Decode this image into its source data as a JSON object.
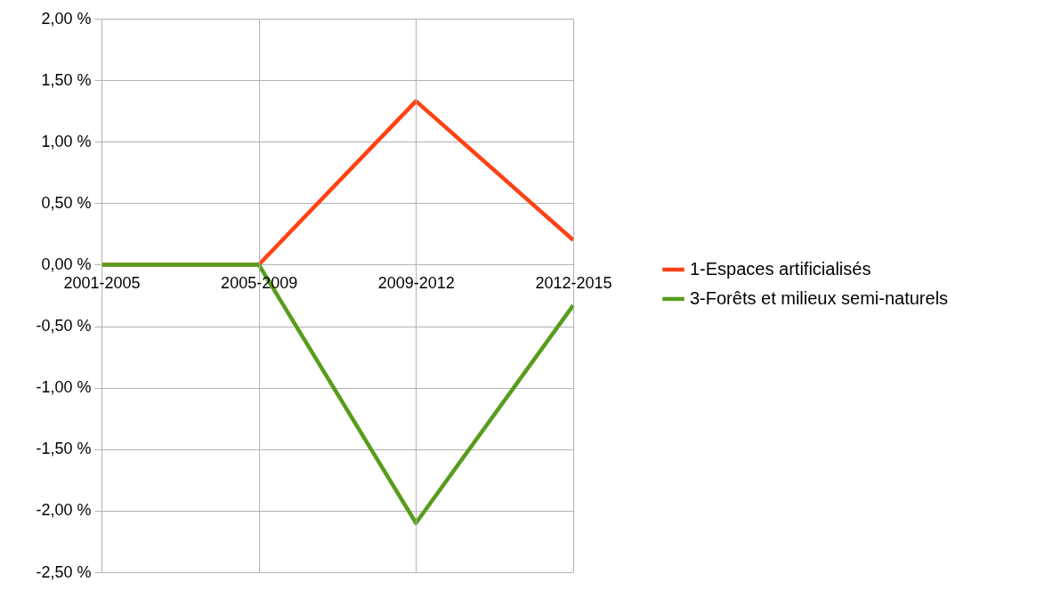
{
  "chart_data": {
    "type": "line",
    "categories": [
      "2001-2005",
      "2005-2009",
      "2009-2012",
      "2012-2015"
    ],
    "series": [
      {
        "name": "1-Espaces artificialisés",
        "color": "#ff4214",
        "values": [
          0,
          0,
          1.33,
          0.2
        ]
      },
      {
        "name": "3-Forêts et milieux semi-naturels",
        "color": "#579d1c",
        "values": [
          0,
          0,
          -2.1,
          -0.33
        ]
      }
    ],
    "ylim": [
      -2.5,
      2
    ],
    "yticks": [
      {
        "value": -2.5,
        "label": "-2,50 %"
      },
      {
        "value": -2,
        "label": "-2,00 %"
      },
      {
        "value": -1.5,
        "label": "-1,50 %"
      },
      {
        "value": -1,
        "label": "-1,00 %"
      },
      {
        "value": -0.5,
        "label": "-0,50 %"
      },
      {
        "value": 0,
        "label": "0,00 %"
      },
      {
        "value": 0.5,
        "label": "0,50 %"
      },
      {
        "value": 1,
        "label": "1,00 %"
      },
      {
        "value": 1.5,
        "label": "1,50 %"
      },
      {
        "value": 2,
        "label": "2,00 %"
      }
    ],
    "grid": true,
    "legend": "right",
    "line_style": "solid",
    "marker": "none"
  }
}
